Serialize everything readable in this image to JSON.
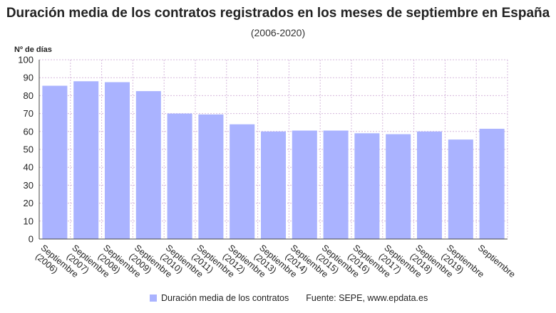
{
  "colors": {
    "bar": "#aab3ff",
    "grid": "#d6b8dc",
    "axis": "#444444"
  },
  "chart_data": {
    "type": "bar",
    "title": "Duración media de los contratos registrados en los meses de septiembre en España",
    "subtitle": "(2006-2020)",
    "ylabel": "Nº de días",
    "xlabel": "",
    "ylim": [
      0,
      100
    ],
    "yticks": [
      0,
      10,
      20,
      30,
      40,
      50,
      60,
      70,
      80,
      90,
      100
    ],
    "grid": true,
    "legend_position": "bottom",
    "categories": [
      [
        "Septiembre",
        "(2006)"
      ],
      [
        "Septiembre",
        "(2007)"
      ],
      [
        "Septiembre",
        "(2008)"
      ],
      [
        "Septiembre",
        "(2009)"
      ],
      [
        "Septiembre",
        "(2010)"
      ],
      [
        "Septiembre",
        "(2011)"
      ],
      [
        "Septiembre",
        "(2012)"
      ],
      [
        "Septiembre",
        "(2013)"
      ],
      [
        "Septiembre",
        "(2014)"
      ],
      [
        "Septiembre",
        "(2015)"
      ],
      [
        "Septiembre",
        "(2016)"
      ],
      [
        "Septiembre",
        "(2017)"
      ],
      [
        "Septiembre",
        "(2018)"
      ],
      [
        "Septiembre",
        "(2019)"
      ],
      [
        "Septiembre"
      ]
    ],
    "series": [
      {
        "name": "Duración media de los contratos",
        "values": [
          85.5,
          88,
          87.5,
          82.5,
          70,
          69.5,
          64,
          60,
          60.5,
          60.5,
          59,
          58.5,
          60,
          55.5,
          61.5
        ]
      }
    ]
  },
  "footer": {
    "legend_label": "Duración media de los contratos",
    "source": "Fuente: SEPE, www.epdata.es"
  }
}
